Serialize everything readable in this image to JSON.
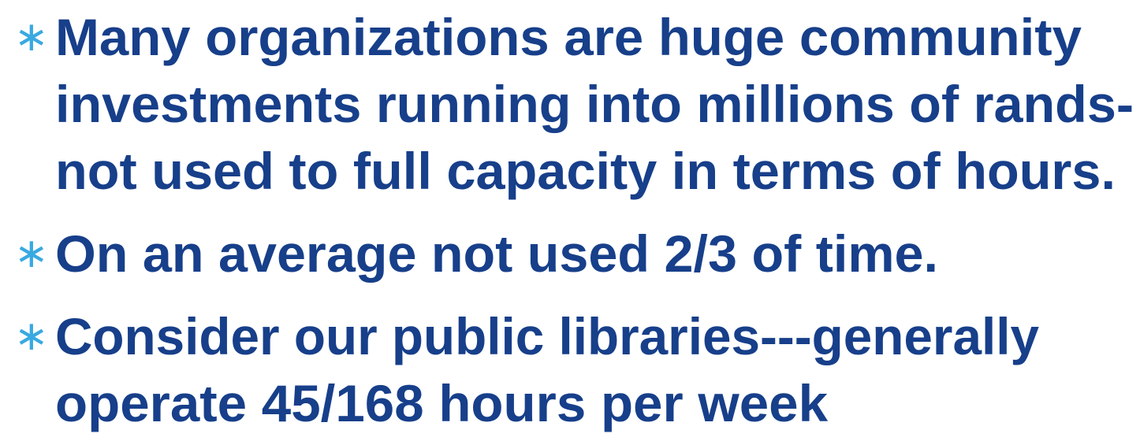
{
  "bullets": [
    {
      "lines": [
        "Many organizations are huge community",
        "investments running into millions of rands-",
        "not used to full capacity in terms of hours."
      ]
    },
    {
      "lines": [
        "On an average not used 2/3 of time."
      ]
    },
    {
      "lines": [
        "Consider our public libraries---generally",
        "operate 45/168 hours per week"
      ]
    }
  ]
}
